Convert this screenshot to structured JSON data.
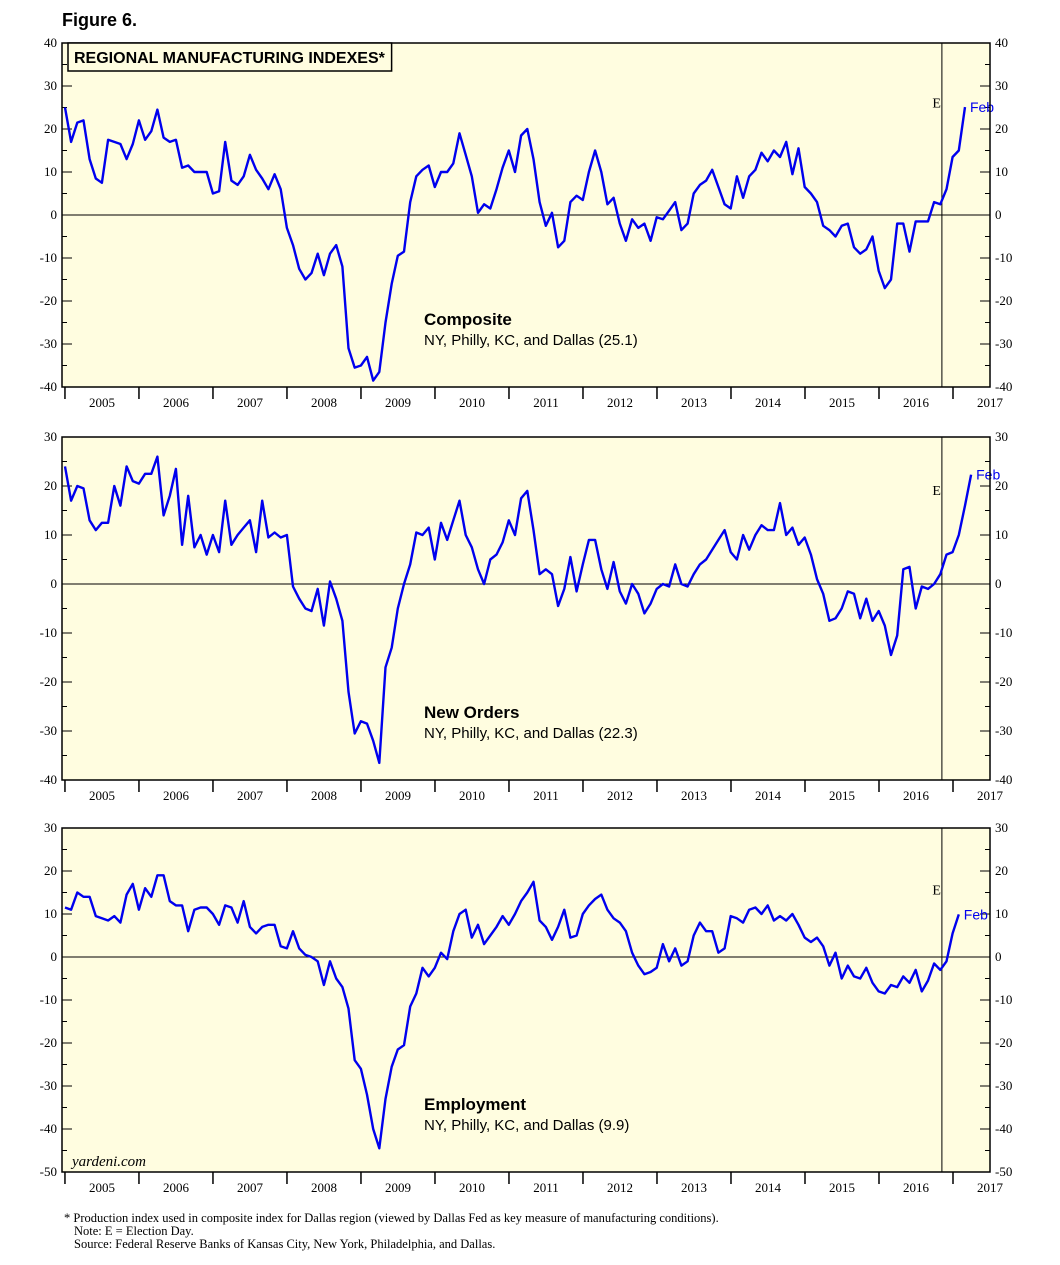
{
  "figure_label": "Figure 6.",
  "title": "REGIONAL MANUFACTURING INDEXES*",
  "watermark": "yardeni.com",
  "colors": {
    "panel_bg": "#fffde0",
    "line": "#0000ee",
    "axis": "#000000"
  },
  "footnotes": {
    "asterisk": "* Production index used in composite index for Dallas region (viewed by Dallas Fed as key measure of manufacturing conditions).",
    "note": "Note: E = Election Day.",
    "source": "Source: Federal Reserve Banks of Kansas City, New York, Philadelphia, and Dallas."
  },
  "chart_data": [
    {
      "type": "line",
      "name": "Composite",
      "label": "Composite",
      "sublabel": "NY, Philly, KC, and Dallas (25.1)",
      "end_label": "Feb",
      "event_marker": {
        "label": "E",
        "x": 2016.85
      },
      "ylim": [
        -40,
        40
      ],
      "yticks": [
        -40,
        -30,
        -20,
        -10,
        0,
        10,
        20,
        30,
        40
      ],
      "xlim": [
        2004.96,
        2017.5
      ],
      "xtick_labels": [
        "2005",
        "2006",
        "2007",
        "2008",
        "2009",
        "2010",
        "2011",
        "2012",
        "2013",
        "2014",
        "2015",
        "2016",
        "2017"
      ],
      "x_start": 2005.0,
      "x_step": 0.0833,
      "values": [
        25,
        17,
        21.5,
        22,
        13,
        8.5,
        7.5,
        17.5,
        17,
        16.5,
        13,
        16.5,
        22,
        17.5,
        19.5,
        24.5,
        18,
        17,
        17.5,
        11,
        11.5,
        10,
        10,
        10,
        5,
        5.5,
        17,
        8,
        7,
        9,
        14,
        10.5,
        8.5,
        6,
        9.5,
        6,
        -3,
        -7,
        -12.5,
        -15,
        -13.5,
        -9,
        -14,
        -9,
        -7,
        -12,
        -31,
        -35.5,
        -35,
        -33,
        -38.5,
        -36.5,
        -25,
        -16,
        -9.5,
        -8.5,
        3,
        9,
        10.5,
        11.5,
        6.5,
        10,
        10,
        12,
        19,
        14,
        9,
        0.5,
        2.5,
        1.5,
        6,
        11,
        15,
        10,
        18.5,
        20,
        13,
        3,
        -2.5,
        0.5,
        -7.5,
        -6,
        3,
        4.5,
        3.5,
        10,
        15,
        10,
        2.5,
        4,
        -2,
        -6,
        -1,
        -3,
        -2,
        -6,
        -0.5,
        -1,
        1,
        3,
        -3.5,
        -2,
        5,
        7,
        8,
        10.5,
        6.5,
        2.5,
        1.5,
        9,
        4,
        9,
        10.5,
        14.5,
        12.5,
        15,
        13.5,
        17,
        9.5,
        15.5,
        6.5,
        5,
        3,
        -2.5,
        -3.5,
        -5,
        -2.5,
        -2,
        -7.5,
        -9,
        -8,
        -5,
        -13,
        -17,
        -15,
        -2,
        -2,
        -8.5,
        -1.5,
        -1.5,
        -1.5,
        3,
        2.5,
        6,
        13.5,
        15,
        25.1
      ]
    },
    {
      "type": "line",
      "name": "New Orders",
      "label": "New Orders",
      "sublabel": "NY, Philly, KC, and Dallas (22.3)",
      "end_label": "Feb",
      "event_marker": {
        "label": "E",
        "x": 2016.85
      },
      "ylim": [
        -40,
        30
      ],
      "yticks": [
        -40,
        -30,
        -20,
        -10,
        0,
        10,
        20,
        30
      ],
      "xlim": [
        2004.96,
        2017.5
      ],
      "xtick_labels": [
        "2005",
        "2006",
        "2007",
        "2008",
        "2009",
        "2010",
        "2011",
        "2012",
        "2013",
        "2014",
        "2015",
        "2016",
        "2017"
      ],
      "x_start": 2005.0,
      "x_step": 0.0833,
      "values": [
        24,
        17,
        20,
        19.5,
        13,
        11,
        12.5,
        12.5,
        20,
        16,
        24,
        21,
        20.5,
        22.5,
        22.5,
        26,
        14,
        18,
        23.5,
        8,
        18,
        7.5,
        10,
        6,
        10,
        6.5,
        17,
        8,
        10,
        11.5,
        13,
        6.5,
        17,
        9.5,
        10.5,
        9.5,
        10,
        -0.5,
        -3,
        -5,
        -5.5,
        -1,
        -8.5,
        0.5,
        -3,
        -7.5,
        -22,
        -30.5,
        -28,
        -28.5,
        -32,
        -36.5,
        -17,
        -13,
        -5,
        0,
        4,
        10.5,
        10,
        11.5,
        5,
        12.5,
        9,
        13,
        17,
        10,
        7.5,
        3,
        0,
        5,
        6,
        8.5,
        13,
        10,
        17.5,
        19,
        11,
        2,
        3,
        2,
        -4.5,
        -1,
        5.5,
        -1.5,
        4,
        9,
        9,
        3,
        -1,
        4.5,
        -1.5,
        -4,
        0,
        -2,
        -6,
        -4,
        -1,
        0,
        -0.5,
        4,
        0,
        -0.5,
        2,
        4,
        5,
        7,
        9,
        11,
        6.5,
        5,
        10,
        7,
        10,
        12,
        11,
        11,
        16.5,
        10,
        11.5,
        8,
        9.5,
        6,
        1,
        -2,
        -7.5,
        -7,
        -5,
        -1.5,
        -2,
        -7,
        -3,
        -7.5,
        -5.5,
        -8.5,
        -14.5,
        -10.5,
        3,
        3.5,
        -5,
        -0.5,
        -1,
        0,
        2,
        6,
        6.5,
        10,
        16,
        22.3
      ]
    },
    {
      "type": "line",
      "name": "Employment",
      "label": "Employment",
      "sublabel": "NY, Philly, KC, and Dallas (9.9)",
      "end_label": "Feb",
      "event_marker": {
        "label": "E",
        "x": 2016.85
      },
      "ylim": [
        -50,
        30
      ],
      "yticks": [
        -50,
        -40,
        -30,
        -20,
        -10,
        0,
        10,
        20,
        30
      ],
      "xlim": [
        2004.96,
        2017.5
      ],
      "xtick_labels": [
        "2005",
        "2006",
        "2007",
        "2008",
        "2009",
        "2010",
        "2011",
        "2012",
        "2013",
        "2014",
        "2015",
        "2016",
        "2017"
      ],
      "x_start": 2005.0,
      "x_step": 0.0833,
      "values": [
        11.5,
        11,
        15,
        14,
        14,
        9.5,
        9,
        8.5,
        9.5,
        8,
        14.5,
        17,
        11,
        16,
        14,
        19,
        19,
        13,
        12,
        12,
        6,
        11,
        11.5,
        11.5,
        10,
        7.5,
        12,
        11.5,
        8,
        13,
        7,
        5.5,
        7,
        7.5,
        7.5,
        2.5,
        2,
        6,
        2,
        0.5,
        0,
        -1,
        -6.5,
        -1,
        -5,
        -7,
        -12,
        -24,
        -26,
        -32,
        -40,
        -44.5,
        -33,
        -25.5,
        -21.5,
        -20.5,
        -11.5,
        -8.5,
        -2.5,
        -4.5,
        -2.5,
        1,
        -0.5,
        6,
        10,
        11,
        4.5,
        7.5,
        3,
        5,
        7,
        9.5,
        7.5,
        10,
        13,
        15,
        17.5,
        8.5,
        7,
        4,
        7,
        11,
        4.5,
        5,
        10,
        12,
        13.5,
        14.5,
        11,
        9,
        8,
        6,
        1,
        -2,
        -4,
        -3.5,
        -2.5,
        3,
        -1,
        2,
        -2,
        -1,
        5,
        8,
        6,
        6,
        1,
        2,
        9.5,
        9,
        8,
        11,
        11.5,
        10,
        12,
        8.5,
        9.5,
        8.5,
        10,
        7.5,
        4.5,
        3.5,
        4.5,
        2.5,
        -2,
        1,
        -5,
        -2,
        -4.5,
        -5,
        -2.5,
        -6,
        -8,
        -8.5,
        -6.5,
        -7,
        -4.5,
        -6,
        -3,
        -8,
        -5.5,
        -1.5,
        -3,
        -1,
        5.5,
        9.9
      ]
    }
  ]
}
